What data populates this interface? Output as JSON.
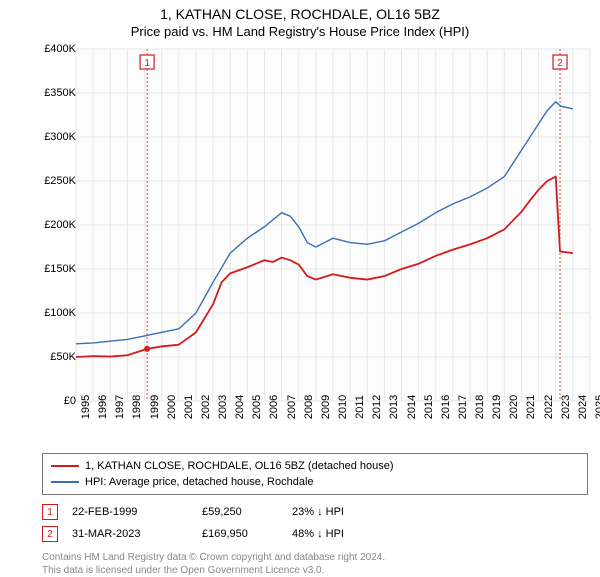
{
  "title": "1, KATHAN CLOSE, ROCHDALE, OL16 5BZ",
  "subtitle": "Price paid vs. HM Land Registry's House Price Index (HPI)",
  "chart": {
    "type": "line",
    "background_color": "#ffffff",
    "plot_background_color": "#fcfcfc",
    "grid_color": "#e6e6e6",
    "border_color": "#888888",
    "ylabel_prefix": "£",
    "ylim": [
      0,
      400000
    ],
    "ytick_step": 50000,
    "yticks": [
      "£0",
      "£50K",
      "£100K",
      "£150K",
      "£200K",
      "£250K",
      "£300K",
      "£350K",
      "£400K"
    ],
    "xlim": [
      1995,
      2025
    ],
    "xticks": [
      1995,
      1996,
      1997,
      1998,
      1999,
      2000,
      2001,
      2002,
      2003,
      2004,
      2005,
      2006,
      2007,
      2008,
      2009,
      2010,
      2011,
      2012,
      2013,
      2014,
      2015,
      2016,
      2017,
      2018,
      2019,
      2020,
      2021,
      2022,
      2023,
      2024,
      2025
    ],
    "axis_fontsize": 11,
    "title_fontsize": 14,
    "series": [
      {
        "name": "price_paid",
        "color": "#d01c1c",
        "line_width": 1.8,
        "legend_label": "1, KATHAN CLOSE, ROCHDALE, OL16 5BZ (detached house)",
        "data": [
          [
            1995.0,
            50000
          ],
          [
            1996.0,
            51000
          ],
          [
            1997.0,
            50500
          ],
          [
            1998.0,
            52000
          ],
          [
            1999.15,
            59250
          ],
          [
            2000.0,
            62000
          ],
          [
            2001.0,
            64000
          ],
          [
            2002.0,
            78000
          ],
          [
            2003.0,
            110000
          ],
          [
            2003.5,
            135000
          ],
          [
            2004.0,
            145000
          ],
          [
            2005.0,
            152000
          ],
          [
            2006.0,
            160000
          ],
          [
            2006.5,
            158000
          ],
          [
            2007.0,
            163000
          ],
          [
            2007.5,
            160000
          ],
          [
            2008.0,
            155000
          ],
          [
            2008.5,
            142000
          ],
          [
            2009.0,
            138000
          ],
          [
            2010.0,
            144000
          ],
          [
            2011.0,
            140000
          ],
          [
            2012.0,
            138000
          ],
          [
            2013.0,
            142000
          ],
          [
            2014.0,
            150000
          ],
          [
            2015.0,
            156000
          ],
          [
            2016.0,
            165000
          ],
          [
            2017.0,
            172000
          ],
          [
            2018.0,
            178000
          ],
          [
            2019.0,
            185000
          ],
          [
            2020.0,
            195000
          ],
          [
            2021.0,
            215000
          ],
          [
            2021.5,
            228000
          ],
          [
            2022.0,
            240000
          ],
          [
            2022.5,
            250000
          ],
          [
            2023.0,
            255000
          ],
          [
            2023.25,
            169950
          ],
          [
            2024.0,
            168000
          ]
        ]
      },
      {
        "name": "hpi",
        "color": "#3b6fb5",
        "line_width": 1.4,
        "legend_label": "HPI: Average price, detached house, Rochdale",
        "data": [
          [
            1995.0,
            65000
          ],
          [
            1996.0,
            66000
          ],
          [
            1997.0,
            68000
          ],
          [
            1998.0,
            70000
          ],
          [
            1999.0,
            74000
          ],
          [
            2000.0,
            78000
          ],
          [
            2001.0,
            82000
          ],
          [
            2002.0,
            100000
          ],
          [
            2003.0,
            135000
          ],
          [
            2004.0,
            168000
          ],
          [
            2005.0,
            185000
          ],
          [
            2006.0,
            198000
          ],
          [
            2007.0,
            214000
          ],
          [
            2007.5,
            210000
          ],
          [
            2008.0,
            198000
          ],
          [
            2008.5,
            180000
          ],
          [
            2009.0,
            175000
          ],
          [
            2010.0,
            185000
          ],
          [
            2011.0,
            180000
          ],
          [
            2012.0,
            178000
          ],
          [
            2013.0,
            182000
          ],
          [
            2014.0,
            192000
          ],
          [
            2015.0,
            202000
          ],
          [
            2016.0,
            214000
          ],
          [
            2017.0,
            224000
          ],
          [
            2018.0,
            232000
          ],
          [
            2019.0,
            242000
          ],
          [
            2020.0,
            255000
          ],
          [
            2021.0,
            285000
          ],
          [
            2022.0,
            315000
          ],
          [
            2022.5,
            330000
          ],
          [
            2023.0,
            340000
          ],
          [
            2023.3,
            335000
          ],
          [
            2024.0,
            332000
          ]
        ]
      }
    ],
    "markers": [
      {
        "id": "1",
        "x": 1999.15,
        "color": "#d01c1c",
        "dashed": false,
        "point_y": 59250
      },
      {
        "id": "2",
        "x": 2023.25,
        "color": "#d01c1c",
        "dashed": true,
        "point_y": null
      }
    ]
  },
  "legend": {
    "items": [
      {
        "color": "#d01c1c",
        "label": "1, KATHAN CLOSE, ROCHDALE, OL16 5BZ (detached house)"
      },
      {
        "color": "#3b6fb5",
        "label": "HPI: Average price, detached house, Rochdale"
      }
    ]
  },
  "marker_table": {
    "rows": [
      {
        "id": "1",
        "color": "#d01c1c",
        "date": "22-FEB-1999",
        "price": "£59,250",
        "delta": "23% ↓ HPI"
      },
      {
        "id": "2",
        "color": "#d01c1c",
        "date": "31-MAR-2023",
        "price": "£169,950",
        "delta": "48% ↓ HPI"
      }
    ]
  },
  "footer": {
    "line1": "Contains HM Land Registry data © Crown copyright and database right 2024.",
    "line2": "This data is licensed under the Open Government Licence v3.0."
  }
}
